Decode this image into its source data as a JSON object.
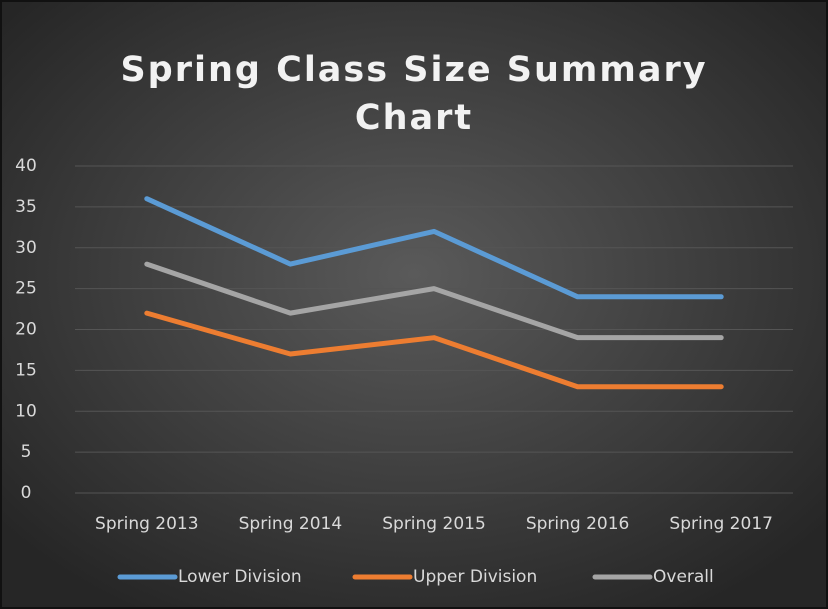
{
  "chart_data": {
    "type": "line",
    "title": "Spring Class Size Summary Chart",
    "categories": [
      "Spring 2013",
      "Spring 2014",
      "Spring 2015",
      "Spring 2016",
      "Spring 2017"
    ],
    "series": [
      {
        "name": "Lower Division",
        "color": "#5b9bd5",
        "values": [
          36,
          28,
          32,
          24,
          24
        ]
      },
      {
        "name": "Upper Division",
        "color": "#ed7d31",
        "values": [
          22,
          17,
          19,
          13,
          13
        ]
      },
      {
        "name": "Overall",
        "color": "#a5a5a5",
        "values": [
          28,
          22,
          25,
          19,
          19
        ]
      }
    ],
    "ylim": [
      0,
      40
    ],
    "yticks": [
      0,
      5,
      10,
      15,
      20,
      25,
      30,
      35,
      40
    ],
    "grid": true,
    "legend": "bottom"
  }
}
